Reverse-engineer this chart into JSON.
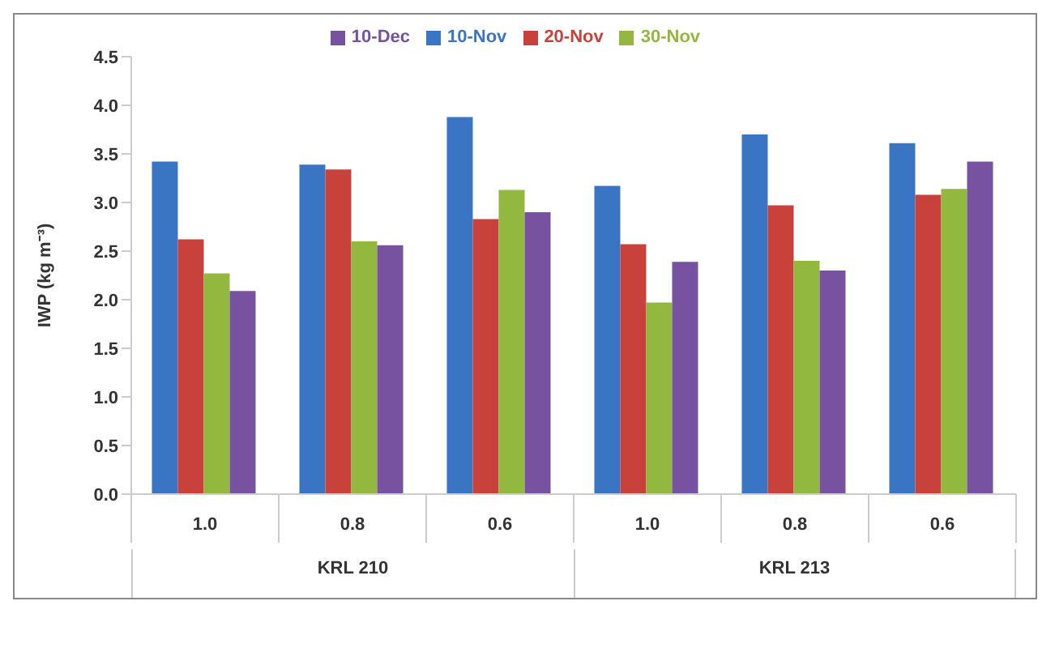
{
  "chart_data": {
    "type": "bar",
    "ylabel": "IWP (kg m⁻³)",
    "categories": [
      "1.0",
      "0.8",
      "0.6",
      "1.0",
      "0.8",
      "0.6"
    ],
    "series": [
      {
        "name": "10-Nov",
        "color": "#3a75c4",
        "values": [
          3.42,
          3.39,
          3.88,
          3.17,
          3.7,
          3.61
        ]
      },
      {
        "name": "20-Nov",
        "color": "#c8413b",
        "values": [
          2.62,
          3.34,
          2.83,
          2.57,
          2.97,
          3.08
        ]
      },
      {
        "name": "30-Nov",
        "color": "#93b83f",
        "values": [
          2.27,
          2.6,
          3.13,
          1.97,
          2.4,
          3.14
        ]
      },
      {
        "name": "10-Dec",
        "color": "#7652a0",
        "values": [
          2.09,
          2.56,
          2.9,
          2.39,
          2.3,
          3.42
        ]
      }
    ],
    "ylim": [
      0,
      4.5
    ],
    "yticks": [
      {
        "value": 0,
        "label": "0.0"
      },
      {
        "value": 0.5,
        "label": "0.5"
      },
      {
        "value": 1,
        "label": "1.0"
      },
      {
        "value": 1.5,
        "label": "1.5"
      },
      {
        "value": 2,
        "label": "2.0"
      },
      {
        "value": 2.5,
        "label": "2.5"
      },
      {
        "value": 3,
        "label": "3.0"
      },
      {
        "value": 3.5,
        "label": "3.5"
      },
      {
        "value": 4,
        "label": "4.0"
      },
      {
        "value": 4.5,
        "label": "4.5"
      }
    ],
    "annotations": [
      "KRL 210",
      "KRL 213"
    ],
    "legend": "top",
    "grid": false
  }
}
